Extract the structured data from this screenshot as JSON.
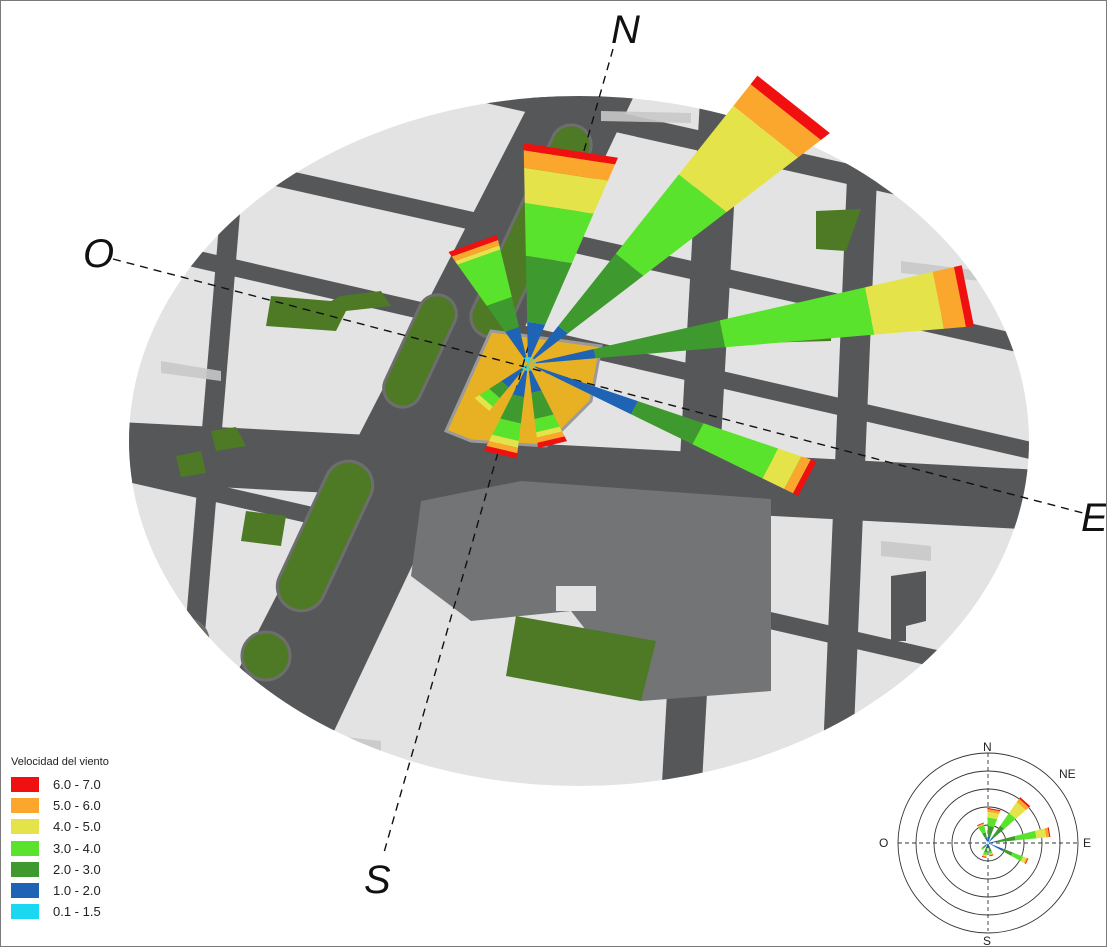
{
  "compass": {
    "north": "N",
    "south": "S",
    "east": "E",
    "west": "O"
  },
  "legend": {
    "title": "Velocidad del viento",
    "items": [
      {
        "label": "6.0 - 7.0",
        "color": "#f01010"
      },
      {
        "label": "5.0 - 6.0",
        "color": "#fba62c"
      },
      {
        "label": "4.0 - 5.0",
        "color": "#e4e44a"
      },
      {
        "label": "3.0 - 4.0",
        "color": "#5ae32c"
      },
      {
        "label": "2.0 - 3.0",
        "color": "#3e9a2e"
      },
      {
        "label": "1.0 - 2.0",
        "color": "#1f63b5"
      },
      {
        "label": "0.1 - 1.5",
        "color": "#1ad7f2"
      }
    ]
  },
  "mini_rose": {
    "n": "N",
    "s": "S",
    "e": "E",
    "w": "O",
    "ne": "NE"
  },
  "colors": {
    "building": "#e3e3e3",
    "building_shadow": "#c8c8c8",
    "road": "#555759",
    "green": "#4e7a26",
    "plaza": "#e8b123",
    "block": "#727476"
  }
}
